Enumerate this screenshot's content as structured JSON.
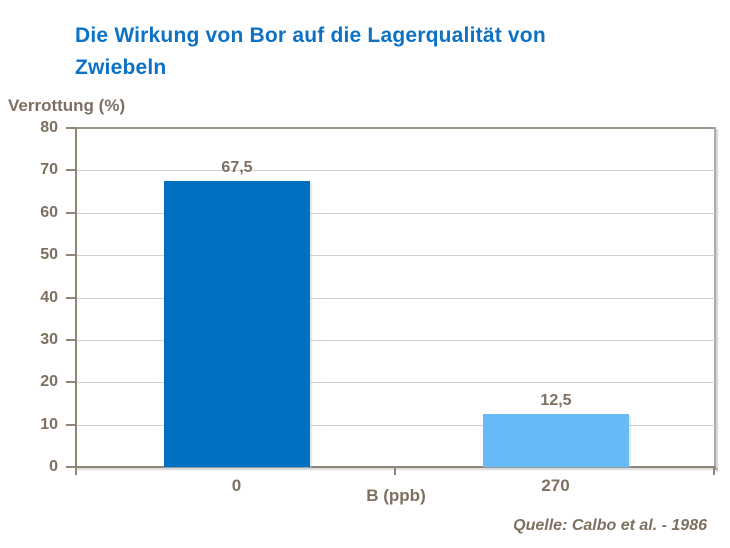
{
  "page": {
    "background": "#ffffff"
  },
  "title": {
    "text": "Die Wirkung von Bor auf die Lagerqualität von\nZwiebeln",
    "color": "#0d72c4"
  },
  "source": {
    "text": "Quelle: Calbo et al. - 1986"
  },
  "chart_data": {
    "type": "bar",
    "title": "Die Wirkung von Bor auf die Lagerqualität von Zwiebeln",
    "categories": [
      "0",
      "270"
    ],
    "values": [
      67.5,
      12.5
    ],
    "value_labels": [
      "67,5",
      "12,5"
    ],
    "bar_colors": [
      "#0070c0",
      "#67baf7"
    ],
    "xlabel": "B (ppb)",
    "ylabel": "Verrottung (%)",
    "ylim": [
      0,
      80
    ],
    "yticks": [
      0,
      10,
      20,
      30,
      40,
      50,
      60,
      70,
      80
    ],
    "grid": true,
    "legend": false,
    "source": "Quelle: Calbo et al. - 1986",
    "colors": {
      "text": "#7d7060",
      "axis": "#8f8678",
      "gridline": "#d0d0d0",
      "plot_top_border": "#9e968a",
      "plot_right_border": "#ababab"
    }
  }
}
